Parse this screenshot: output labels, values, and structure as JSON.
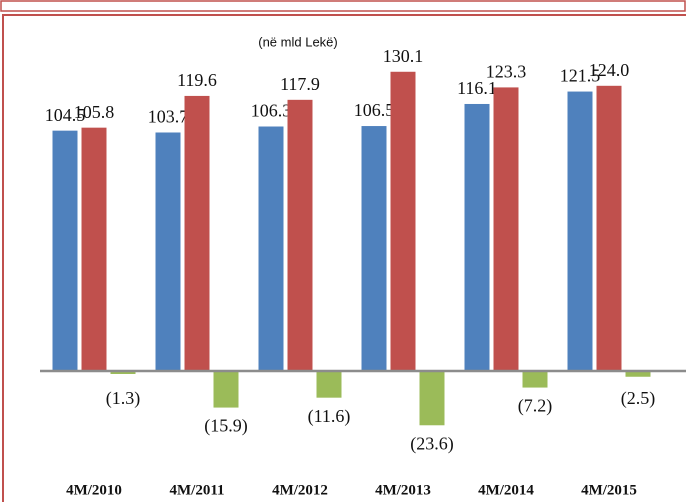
{
  "chart_data": {
    "type": "bar",
    "subtitle": "(në mld Lekë)",
    "categories": [
      "4M/2010",
      "4M/2011",
      "4M/2012",
      "4M/2013",
      "4M/2014",
      "4M/2015"
    ],
    "series": [
      {
        "color": "#4f81bd",
        "values": [
          104.5,
          103.7,
          106.3,
          106.5,
          116.1,
          121.5
        ]
      },
      {
        "color": "#c0504d",
        "values": [
          105.8,
          119.6,
          117.9,
          130.1,
          123.3,
          124.0
        ],
        "value_labels": [
          "105.8",
          "119.6",
          "117.9",
          "130.1",
          "123.3",
          "124.0"
        ]
      },
      {
        "color": "#9bbb59",
        "values": [
          -1.3,
          -15.9,
          -11.6,
          -23.6,
          -7.2,
          -2.5
        ],
        "value_labels": [
          "(1.3)",
          "(15.9)",
          "(11.6)",
          "(23.6)",
          "(7.2)",
          "(2.5)"
        ]
      }
    ]
  }
}
